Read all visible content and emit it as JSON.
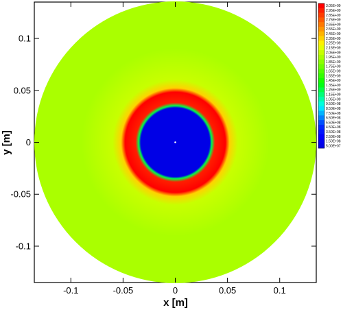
{
  "chart_data": {
    "type": "heatmap",
    "title": "",
    "xlabel": "x [m]",
    "ylabel": "y [m]",
    "xlim": [
      -0.135,
      0.135
    ],
    "ylim": [
      -0.135,
      0.135
    ],
    "xticks": [
      -0.1,
      -0.05,
      0,
      0.05,
      0.1
    ],
    "yticks": [
      -0.1,
      -0.05,
      0,
      0.05,
      0.1
    ],
    "xtick_labels": [
      "-0.1",
      "-0.05",
      "0",
      "0.05",
      "0.1"
    ],
    "ytick_labels": [
      "-0.1",
      "-0.05",
      "0",
      "0.05",
      "0.1"
    ],
    "grid": false,
    "domain": {
      "shape": "circle",
      "center": [
        0,
        0
      ],
      "radius": 0.135
    },
    "field": {
      "description_levels": "radial distribution of scalar value",
      "radial_profile": [
        {
          "r": 0.0,
          "value": 50000000.0
        },
        {
          "r": 0.033,
          "value": 50000000.0
        },
        {
          "r": 0.035,
          "value": 1200000000.0
        },
        {
          "r": 0.038,
          "value": 2950000000.0
        },
        {
          "r": 0.048,
          "value": 3050000000.0
        },
        {
          "r": 0.052,
          "value": 2300000000.0
        },
        {
          "r": 0.06,
          "value": 2050000000.0
        },
        {
          "r": 0.09,
          "value": 1950000000.0
        },
        {
          "r": 0.135,
          "value": 1900000000.0
        }
      ],
      "center_marker": [
        0,
        0
      ]
    },
    "colorbar": {
      "placement": "right",
      "labels": [
        "3.05E+09",
        "2.95E+09",
        "2.85E+09",
        "2.75E+09",
        "2.65E+09",
        "2.55E+09",
        "2.45E+09",
        "2.35E+09",
        "2.25E+09",
        "2.15E+09",
        "2.05E+09",
        "1.95E+09",
        "1.85E+09",
        "1.75E+09",
        "1.65E+09",
        "1.55E+09",
        "1.45E+09",
        "1.35E+09",
        "1.25E+09",
        "1.15E+09",
        "1.05E+09",
        "9.50E+08",
        "8.50E+08",
        "7.50E+08",
        "6.50E+08",
        "5.50E+08",
        "4.50E+08",
        "3.50E+08",
        "2.50E+08",
        "1.50E+08",
        "5.00E+07"
      ],
      "colors": [
        "#ff0000",
        "#ff1e00",
        "#ff3c00",
        "#ff5a00",
        "#ff7800",
        "#ff9600",
        "#ffb400",
        "#ffd200",
        "#fff000",
        "#e6ff00",
        "#c8ff00",
        "#aaff00",
        "#8cff00",
        "#6eff00",
        "#50ff00",
        "#32ff00",
        "#14ff00",
        "#00ff14",
        "#00ff46",
        "#00ff78",
        "#00ffaa",
        "#00ffdc",
        "#00e6ff",
        "#00b4ff",
        "#0082ff",
        "#0050ff",
        "#0028ff",
        "#0014ff",
        "#0000ff",
        "#0000f0",
        "#0000e6"
      ]
    }
  }
}
